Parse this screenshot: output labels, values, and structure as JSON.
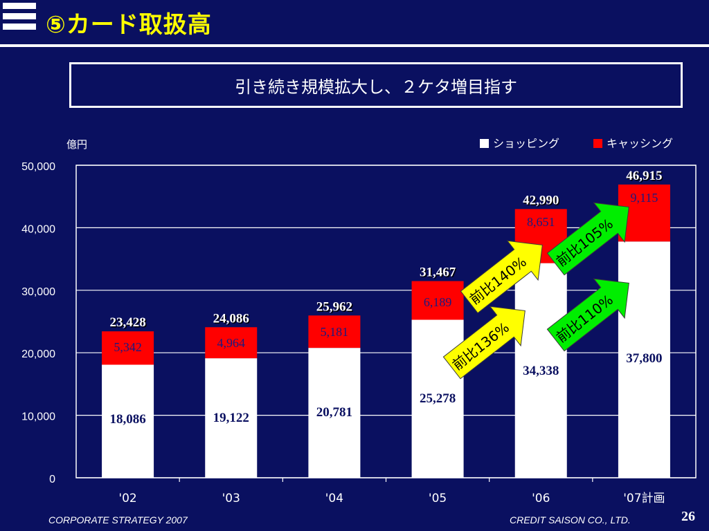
{
  "header": {
    "title": "⑤カード取扱高",
    "subtitle": "引き続き規模拡大し、２ケタ増目指す"
  },
  "footer": {
    "left": "CORPORATE STRATEGY 2007",
    "right": "CREDIT SAISON CO., LTD.",
    "page": "26"
  },
  "colors": {
    "background": "#0a1060",
    "shopping": "#ffffff",
    "cashing": "#ff0000",
    "total_label": "#ffffff",
    "arrow_yellow": "#ffff00",
    "arrow_green": "#00ee00"
  },
  "chart_data": {
    "type": "bar",
    "stacked": true,
    "ylabel": "億円",
    "ylim": [
      0,
      50000
    ],
    "yticks": [
      "0",
      "10,000",
      "20,000",
      "30,000",
      "40,000",
      "50,000"
    ],
    "categories": [
      "'02",
      "'03",
      "'04",
      "'05",
      "'06",
      "'07計画"
    ],
    "series": [
      {
        "name": "ショッピング",
        "values": [
          18086,
          19122,
          20781,
          25278,
          34338,
          37800
        ],
        "labels": [
          "18,086",
          "19,122",
          "20,781",
          "25,278",
          "34,338",
          "37,800"
        ]
      },
      {
        "name": "キャッシング",
        "values": [
          5342,
          4964,
          5181,
          6189,
          8651,
          9115
        ],
        "labels": [
          "5,342",
          "4,964",
          "5,181",
          "6,189",
          "8,651",
          "9,115"
        ]
      }
    ],
    "totals": [
      "23,428",
      "24,086",
      "25,962",
      "31,467",
      "42,990",
      "46,915"
    ],
    "annotations": [
      {
        "text": "前比140%",
        "color": "yellow"
      },
      {
        "text": "前比136%",
        "color": "yellow"
      },
      {
        "text": "前比105%",
        "color": "green"
      },
      {
        "text": "前比110%",
        "color": "green"
      }
    ]
  }
}
